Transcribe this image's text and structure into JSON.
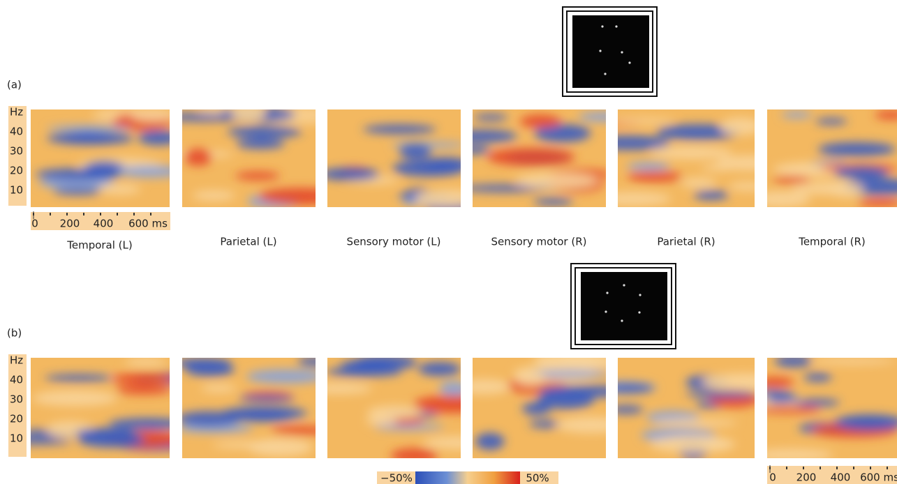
{
  "panels": [
    {
      "label": "(a)",
      "yticks": [
        "Hz",
        "40",
        "30",
        "20",
        "10"
      ],
      "xticks": [
        "0",
        "200",
        "400",
        "600 ms"
      ]
    },
    {
      "label": "(b)",
      "yticks": [
        "Hz",
        "40",
        "30",
        "20",
        "10"
      ],
      "xticks": [
        "0",
        "200",
        "400",
        "600 ms"
      ]
    }
  ],
  "regions": [
    "Temporal (L)",
    "Parietal (L)",
    "Sensory motor (L)",
    "Sensory motor (R)",
    "Parietal (R)",
    "Temporal (R)"
  ],
  "colorbar": {
    "min_label": "−50%",
    "max_label": "50%"
  }
}
